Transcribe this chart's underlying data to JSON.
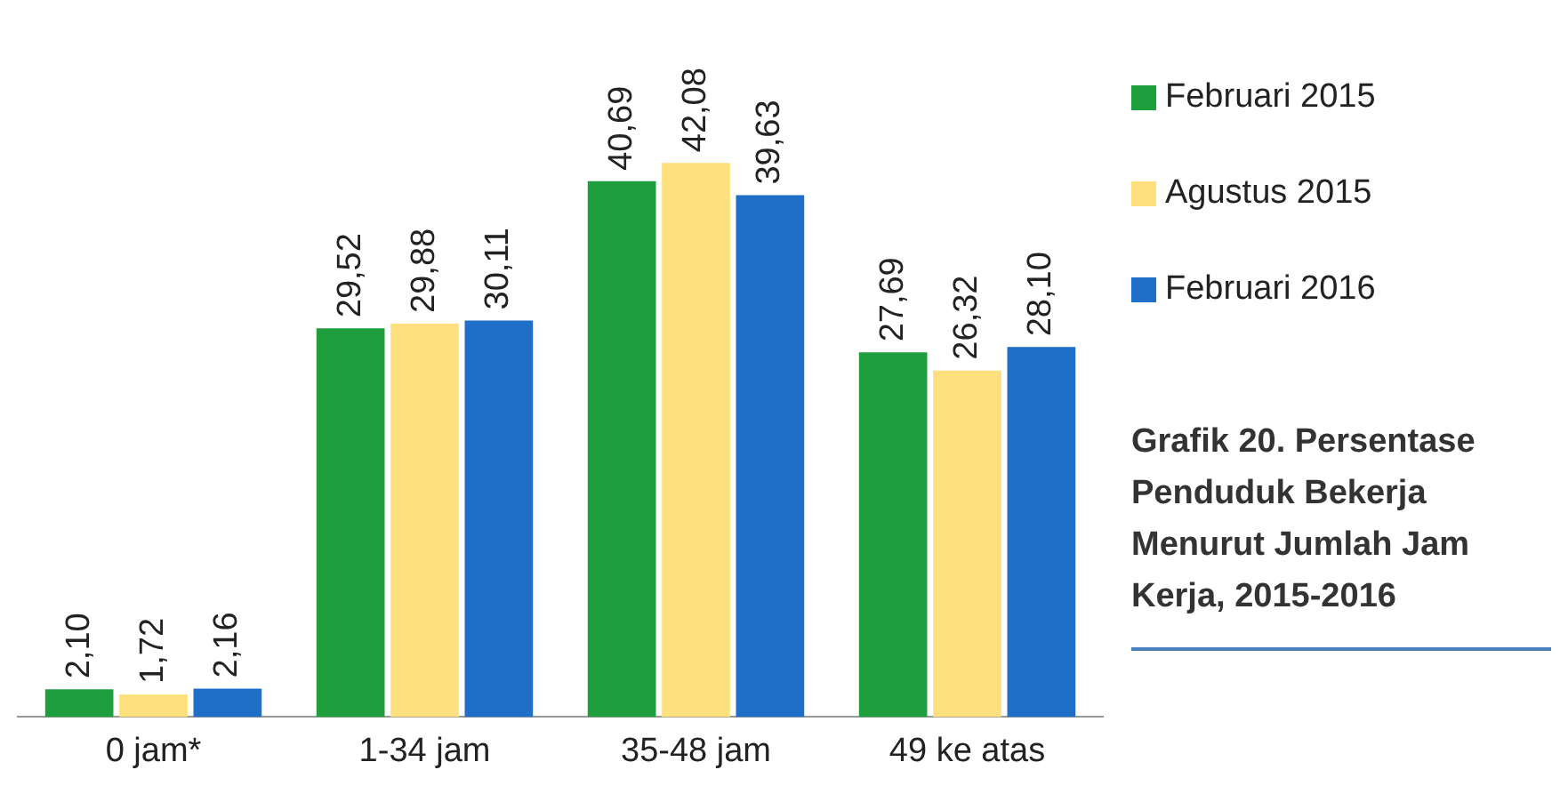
{
  "chart_data": {
    "type": "bar",
    "title": "Grafik 20. Persentase Penduduk Bekerja Menurut Jumlah Jam Kerja, 2015-2016",
    "categories": [
      "0 jam*",
      "1-34 jam",
      "35-48 jam",
      "49 ke atas"
    ],
    "series": [
      {
        "name": "Februari 2015",
        "color": "#1e9e3c",
        "values": [
          2.1,
          29.52,
          40.69,
          27.69
        ],
        "value_labels": [
          "2,10",
          "29,52",
          "40,69",
          "27,69"
        ]
      },
      {
        "name": "Agustus 2015",
        "color": "#ffe07f",
        "values": [
          1.72,
          29.88,
          42.08,
          26.32
        ],
        "value_labels": [
          "1,72",
          "29,88",
          "42,08",
          "26,32"
        ]
      },
      {
        "name": "Februari 2016",
        "color": "#1f6fc8",
        "values": [
          2.16,
          30.11,
          39.63,
          28.1
        ],
        "value_labels": [
          "2,16",
          "30,11",
          "39,63",
          "28,10"
        ]
      }
    ],
    "legend": "right",
    "grid": false
  }
}
